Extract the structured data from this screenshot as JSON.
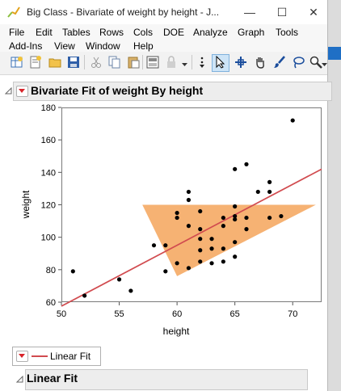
{
  "window": {
    "title": "Big Class - Bivariate of weight by height - J...",
    "minimize": "—",
    "maximize": "☐",
    "close": "✕"
  },
  "menu": {
    "row1": [
      "File",
      "Edit",
      "Tables",
      "Rows",
      "Cols",
      "DOE",
      "Analyze",
      "Graph",
      "Tools"
    ],
    "row2": [
      "Add-Ins",
      "View",
      "Window",
      "Help"
    ]
  },
  "toolbar": {
    "icons": [
      "new-data-table-icon",
      "new-script-icon",
      "open-icon",
      "save-icon",
      "cut-icon",
      "copy-icon",
      "paste-icon",
      "journal-icon",
      "lock-icon",
      "dropdown-icon",
      "selection-tool-icon",
      "arrow-tool-icon",
      "crosshair-icon",
      "grabber-hand-icon",
      "brush-icon",
      "lasso-icon",
      "magnifier-icon",
      "overflow-icon"
    ]
  },
  "report": {
    "bivariate_title": "Bivariate Fit of weight By height",
    "linear_fit_title": "Linear Fit",
    "legend_label": "Linear Fit"
  },
  "colors": {
    "fit_line": "#d14b4f",
    "points": "#000000",
    "highlight_triangle": "#f5a55a",
    "disclosure_red": "#d8232a"
  },
  "chart_data": {
    "type": "scatter",
    "xlabel": "height",
    "ylabel": "weight",
    "xlim": [
      50,
      72.5
    ],
    "ylim": [
      60,
      180
    ],
    "xticks": [
      50,
      55,
      60,
      65,
      70
    ],
    "yticks": [
      60,
      80,
      100,
      120,
      140,
      160,
      180
    ],
    "points": [
      [
        51,
        79
      ],
      [
        52,
        64
      ],
      [
        55,
        74
      ],
      [
        56,
        67
      ],
      [
        58,
        95
      ],
      [
        59,
        95
      ],
      [
        59,
        79
      ],
      [
        60,
        115
      ],
      [
        60,
        112
      ],
      [
        60,
        84
      ],
      [
        61,
        128
      ],
      [
        61,
        123
      ],
      [
        61,
        107
      ],
      [
        61,
        81
      ],
      [
        62,
        116
      ],
      [
        62,
        105
      ],
      [
        62,
        99
      ],
      [
        62,
        92
      ],
      [
        62,
        85
      ],
      [
        63,
        99
      ],
      [
        63,
        93
      ],
      [
        63,
        84
      ],
      [
        64,
        112
      ],
      [
        64,
        107
      ],
      [
        64,
        93
      ],
      [
        64,
        85
      ],
      [
        65,
        142
      ],
      [
        65,
        119
      ],
      [
        65,
        113
      ],
      [
        65,
        111
      ],
      [
        65,
        97
      ],
      [
        65,
        88
      ],
      [
        66,
        145
      ],
      [
        66,
        112
      ],
      [
        66,
        105
      ],
      [
        67,
        128
      ],
      [
        68,
        134
      ],
      [
        68,
        128
      ],
      [
        68,
        112
      ],
      [
        69,
        113
      ],
      [
        70,
        172
      ]
    ],
    "fit_line": {
      "x": [
        50,
        72.5
      ],
      "y": [
        57.5,
        142
      ]
    },
    "highlight_polygon": [
      [
        57,
        120
      ],
      [
        72,
        120
      ],
      [
        60,
        76
      ]
    ]
  }
}
